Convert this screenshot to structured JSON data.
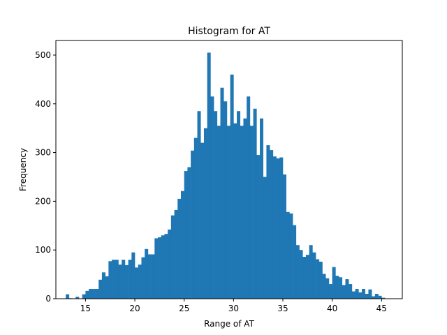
{
  "chart_data": {
    "type": "bar",
    "title": "Histogram for AT",
    "xlabel": "Range of AT",
    "ylabel": "Frequency",
    "xlim": [
      12.0,
      47.1
    ],
    "ylim": [
      0,
      530
    ],
    "x_ticks": [
      15,
      20,
      25,
      30,
      35,
      40,
      45
    ],
    "y_ticks": [
      0,
      100,
      200,
      300,
      400,
      500
    ],
    "grid": false,
    "bar_color": "#1f77b4",
    "bin_start": 13.0,
    "bin_width": 0.3333,
    "values": [
      9,
      1,
      0,
      4,
      0,
      9,
      16,
      20,
      20,
      20,
      39,
      54,
      46,
      77,
      80,
      80,
      70,
      80,
      69,
      80,
      95,
      64,
      70,
      85,
      102,
      91,
      91,
      124,
      126,
      130,
      133,
      142,
      171,
      182,
      205,
      221,
      262,
      270,
      304,
      330,
      385,
      320,
      350,
      505,
      415,
      385,
      355,
      433,
      405,
      355,
      460,
      360,
      385,
      355,
      370,
      415,
      355,
      390,
      295,
      370,
      250,
      315,
      305,
      292,
      288,
      290,
      255,
      178,
      175,
      151,
      110,
      100,
      86,
      90,
      110,
      95,
      81,
      76,
      51,
      42,
      30,
      65,
      47,
      44,
      28,
      40,
      30,
      15,
      20,
      13,
      20,
      10,
      19,
      5,
      10,
      6,
      2
    ]
  }
}
